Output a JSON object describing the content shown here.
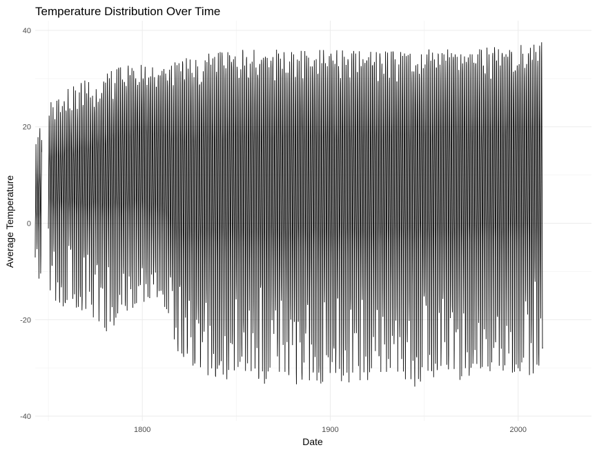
{
  "chart_data": {
    "type": "line",
    "title": "Temperature Distribution Over Time",
    "xlabel": "Date",
    "ylabel": "Average Temperature",
    "xlim": [
      1743,
      2039
    ],
    "ylim": [
      -41,
      42
    ],
    "x_ticks": [
      1800,
      1900,
      2000
    ],
    "x_tick_labels": [
      "1800",
      "1900",
      "2000"
    ],
    "y_ticks": [
      -40,
      -20,
      0,
      20,
      40
    ],
    "y_tick_labels": [
      "-40",
      "-20",
      "0",
      "20",
      "40"
    ],
    "grid": true,
    "line_color": "#000000",
    "series": [
      {
        "x_start": 1743,
        "x_end": 2013,
        "resolution": "monthly",
        "envelope": {
          "x": [
            1743,
            1750,
            1760,
            1770,
            1780,
            1790,
            1800,
            1810,
            1815,
            1820,
            1830,
            1850,
            1900,
            1950,
            2000,
            2013
          ],
          "upper": [
            22,
            25,
            28,
            30,
            31,
            33,
            33,
            32,
            33,
            34,
            35,
            36,
            36,
            36,
            37,
            38
          ],
          "lower": [
            -12,
            -15,
            -18,
            -20,
            -23,
            -20,
            -18,
            -15,
            -22,
            -28,
            -32,
            -33,
            -34,
            -34,
            -33,
            -30
          ],
          "band_upper": [
            10,
            18,
            20,
            22,
            24,
            26,
            27,
            27,
            27,
            28,
            28,
            29,
            29,
            29,
            30,
            30
          ],
          "band_lower": [
            -2,
            0,
            -1,
            -2,
            -3,
            -4,
            -3,
            -5,
            -8,
            -12,
            -12,
            -12,
            -12,
            -12,
            -11,
            -11
          ]
        }
      }
    ]
  }
}
